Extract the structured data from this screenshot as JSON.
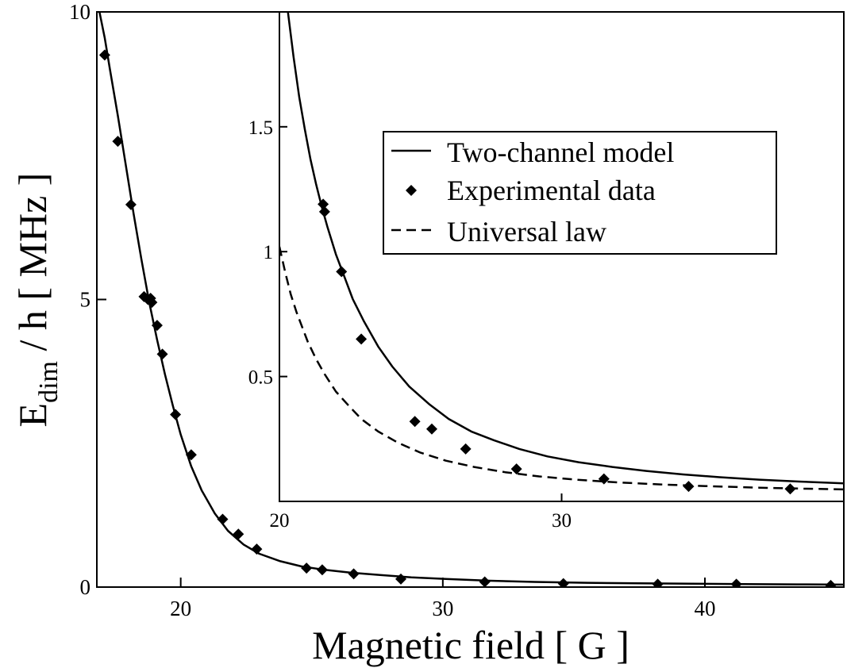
{
  "chart_data": [
    {
      "id": "main",
      "type": "line",
      "xlabel": "Magnetic field [ G ]",
      "ylabel_main": "E",
      "ylabel_sub": "dim",
      "ylabel_rest": " / h  [ MHz ]",
      "xlim": [
        16.8,
        45.3
      ],
      "ylim": [
        0,
        10
      ],
      "xticks": [
        20,
        30,
        40
      ],
      "xtick_labels": [
        "20",
        "30",
        "40"
      ],
      "yticks": [
        0,
        5,
        10
      ],
      "ytick_labels": [
        "0",
        "5",
        "10"
      ],
      "series": [
        {
          "name": "Two-channel  model",
          "style": "solid",
          "x": [
            16.9,
            17.1,
            17.3,
            17.6,
            17.9,
            18.2,
            18.5,
            18.8,
            19.1,
            19.4,
            19.7,
            20.0,
            20.4,
            20.8,
            21.3,
            21.8,
            22.4,
            23.0,
            23.8,
            24.6,
            25.5,
            26.5,
            27.6,
            28.8,
            30.2,
            31.8,
            33.5,
            35.5,
            37.5,
            39.5,
            41.5,
            43.5,
            45.3
          ],
          "y": [
            10.0,
            9.55,
            9.0,
            8.2,
            7.35,
            6.5,
            5.7,
            4.95,
            4.3,
            3.7,
            3.15,
            2.65,
            2.1,
            1.68,
            1.28,
            0.98,
            0.74,
            0.58,
            0.45,
            0.36,
            0.3,
            0.25,
            0.21,
            0.17,
            0.14,
            0.11,
            0.09,
            0.075,
            0.065,
            0.058,
            0.052,
            0.047,
            0.043
          ]
        },
        {
          "name": "Experimental data",
          "style": "marker",
          "x": [
            17.1,
            17.6,
            18.1,
            18.6,
            18.75,
            18.85,
            18.9,
            19.1,
            19.3,
            19.8,
            20.4,
            21.6,
            22.2,
            22.9,
            24.8,
            25.4,
            26.6,
            28.4,
            31.6,
            34.6,
            38.2,
            41.2,
            44.8
          ],
          "y": [
            9.25,
            7.75,
            6.65,
            5.05,
            5.0,
            5.02,
            4.95,
            4.55,
            4.05,
            3.0,
            2.3,
            1.18,
            0.92,
            0.66,
            0.33,
            0.3,
            0.23,
            0.14,
            0.09,
            0.06,
            0.05,
            0.05,
            0.03
          ]
        }
      ]
    },
    {
      "id": "inset",
      "type": "line",
      "xlim": [
        20.0,
        40.0
      ],
      "ylim": [
        0.0,
        1.96
      ],
      "xticks": [
        20,
        30
      ],
      "xtick_labels": [
        "20",
        "30"
      ],
      "yticks": [
        0.5,
        1.0,
        1.5
      ],
      "ytick_labels": [
        "0.5",
        "1",
        "1.5"
      ],
      "legend_position": "top-right",
      "series": [
        {
          "name": "Two-channel  model",
          "style": "solid",
          "x": [
            20.3,
            20.5,
            20.7,
            20.9,
            21.1,
            21.3,
            21.5,
            21.7,
            22.0,
            22.3,
            22.6,
            23.0,
            23.5,
            24.0,
            24.6,
            25.3,
            26.0,
            26.8,
            27.6,
            28.5,
            29.5,
            30.6,
            31.8,
            33.0,
            34.3,
            35.6,
            37.0,
            38.5,
            40.0
          ],
          "y": [
            1.96,
            1.78,
            1.62,
            1.49,
            1.37,
            1.27,
            1.18,
            1.1,
            0.99,
            0.9,
            0.81,
            0.72,
            0.62,
            0.54,
            0.46,
            0.39,
            0.33,
            0.28,
            0.245,
            0.21,
            0.18,
            0.157,
            0.138,
            0.122,
            0.108,
            0.097,
            0.087,
            0.079,
            0.072
          ]
        },
        {
          "name": "Experimental data",
          "style": "marker",
          "x": [
            21.55,
            21.6,
            22.2,
            22.9,
            24.8,
            25.4,
            26.6,
            28.4,
            31.5,
            34.5,
            38.1
          ],
          "y": [
            1.19,
            1.16,
            0.92,
            0.65,
            0.32,
            0.29,
            0.21,
            0.13,
            0.09,
            0.06,
            0.05
          ]
        },
        {
          "name": "Universal law",
          "style": "dashed",
          "x": [
            20.0,
            20.2,
            20.4,
            20.6,
            20.8,
            21.0,
            21.3,
            21.6,
            22.0,
            22.4,
            22.9,
            23.5,
            24.2,
            25.0,
            25.9,
            26.9,
            28.0,
            29.2,
            30.5,
            32.0,
            33.5,
            35.2,
            37.0,
            38.5,
            40.0
          ],
          "y": [
            1.02,
            0.92,
            0.83,
            0.76,
            0.7,
            0.64,
            0.57,
            0.51,
            0.44,
            0.39,
            0.33,
            0.28,
            0.235,
            0.195,
            0.163,
            0.138,
            0.117,
            0.1,
            0.087,
            0.076,
            0.068,
            0.061,
            0.055,
            0.051,
            0.048
          ]
        }
      ]
    }
  ]
}
